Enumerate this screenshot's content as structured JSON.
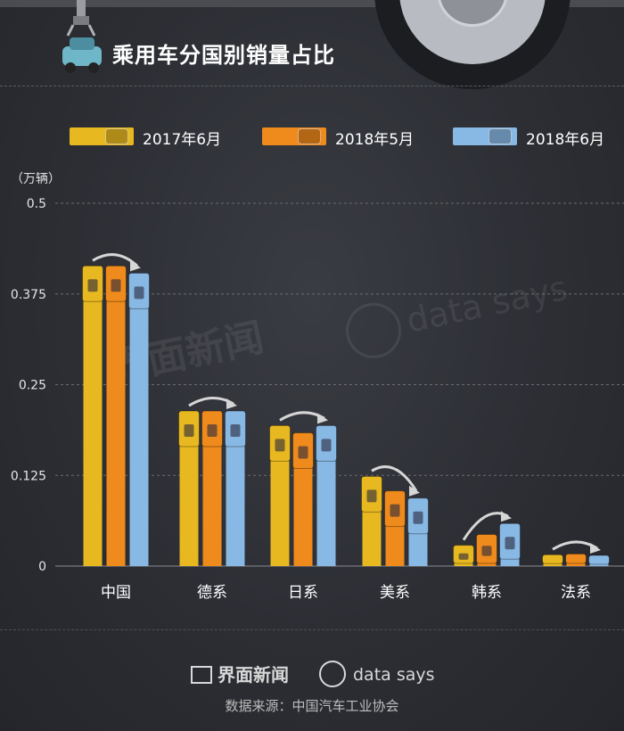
{
  "header": {
    "title": "乘用车分国别销量占比"
  },
  "colors": {
    "series": [
      "#e8b820",
      "#ef8a1c",
      "#88b8e4"
    ],
    "background": "#2c2e34",
    "grid": "#6a6c72",
    "arrow": "#d6d6d6"
  },
  "chart_data": {
    "type": "bar",
    "unit_label": "（万辆）",
    "categories": [
      "中国",
      "德系",
      "日系",
      "美系",
      "韩系",
      "法系"
    ],
    "series": [
      {
        "name": "2017年6月",
        "values": [
          0.41,
          0.21,
          0.19,
          0.12,
          0.025,
          0.012
        ]
      },
      {
        "name": "2018年5月",
        "values": [
          0.41,
          0.21,
          0.18,
          0.1,
          0.04,
          0.013
        ]
      },
      {
        "name": "2018年6月",
        "values": [
          0.4,
          0.21,
          0.19,
          0.09,
          0.055,
          0.011
        ]
      }
    ],
    "yticks": [
      "0",
      "0.125",
      "0.25",
      "0.375",
      "0.5"
    ],
    "ylim": [
      0,
      0.5
    ],
    "grid": true,
    "legend_position": "top"
  },
  "footer": {
    "brand1": "界面新闻",
    "brand2": "data says",
    "source": "数据来源：中国汽车工业协会"
  },
  "watermark": {
    "text1": "界面新闻",
    "text2": "data says"
  }
}
